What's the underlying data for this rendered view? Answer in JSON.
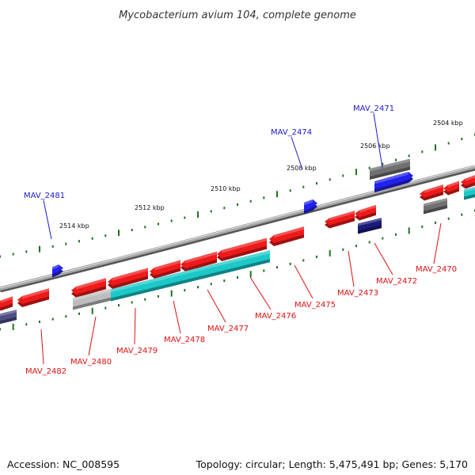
{
  "title": "Mycobacterium avium 104, complete genome",
  "footer": {
    "accession": "Accession: NC_008595",
    "topology": "Topology: circular; Length: 5,475,491 bp; Genes: 5,170"
  },
  "colors": {
    "backbone": "#8c8c8c",
    "tick": "#207020",
    "plus_label": "#1a1acc",
    "minus_label": "#dd1111",
    "red_gene": "#ee1a1a",
    "cyan_gene": "#1cc8c8",
    "gray_gene": "#707070",
    "light_gray_gene": "#bdbdbd",
    "navy_gene": "#1a1a7a",
    "blue_gene": "#2222ee",
    "slate_gene": "#505088"
  },
  "ticks": [
    {
      "label": "2504 kbp"
    },
    {
      "label": "2506 kbp"
    },
    {
      "label": "2508 kbp"
    },
    {
      "label": "2510 kbp"
    },
    {
      "label": "2512 kbp"
    },
    {
      "label": "2514 kbp"
    }
  ],
  "gene_labels": [
    {
      "text": "MAV_2471",
      "strand": "plus"
    },
    {
      "text": "MAV_2474",
      "strand": "plus"
    },
    {
      "text": "MAV_2481",
      "strand": "plus"
    },
    {
      "text": "MAV_2470",
      "strand": "minus"
    },
    {
      "text": "MAV_2472",
      "strand": "minus"
    },
    {
      "text": "MAV_2473",
      "strand": "minus"
    },
    {
      "text": "MAV_2475",
      "strand": "minus"
    },
    {
      "text": "MAV_2476",
      "strand": "minus"
    },
    {
      "text": "MAV_2477",
      "strand": "minus"
    },
    {
      "text": "MAV_2478",
      "strand": "minus"
    },
    {
      "text": "MAV_2479",
      "strand": "minus"
    },
    {
      "text": "MAV_2480",
      "strand": "minus"
    },
    {
      "text": "MAV_2482",
      "strand": "minus"
    }
  ]
}
